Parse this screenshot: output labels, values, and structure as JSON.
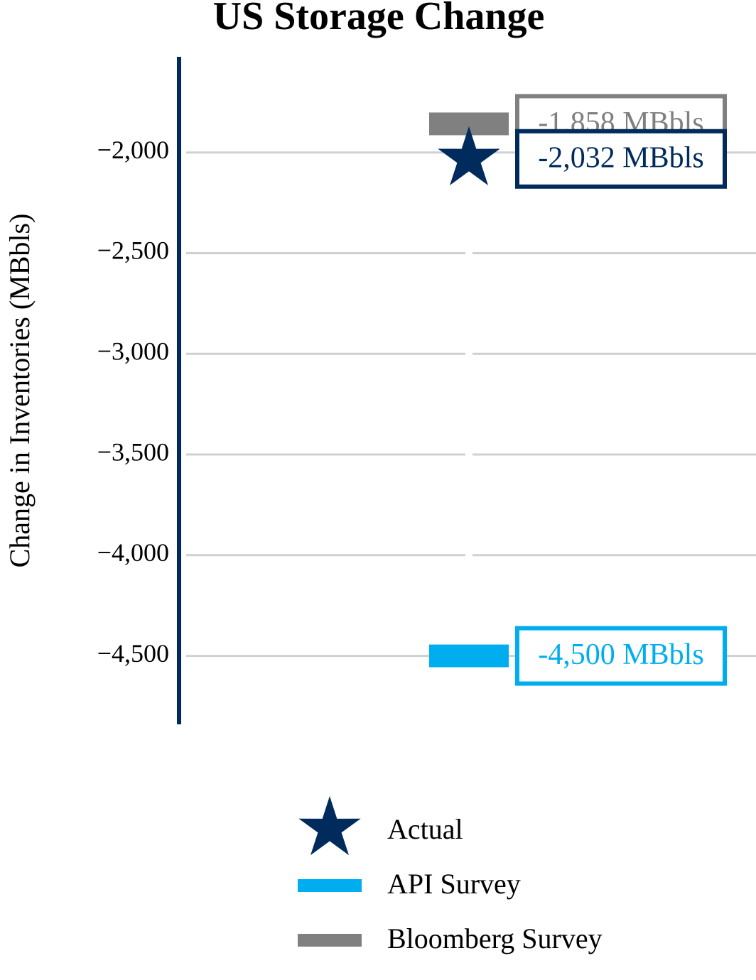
{
  "chart_data": {
    "type": "marker",
    "title": "US Storage Change",
    "y_label": "Change in Inventories (MBbls)",
    "categories": [
      null
    ],
    "series": [
      {
        "name": "Actual",
        "color": "#002b5c",
        "marker": "star",
        "values": [
          -2032
        ],
        "value_labels": [
          "-2,032 MBbls"
        ]
      },
      {
        "name": "API Survey",
        "color": "#00aeef",
        "marker": "dash",
        "values": [
          -4500
        ],
        "value_labels": [
          "-4,500 MBbls"
        ]
      },
      {
        "name": "Bloomberg Survey",
        "color": "#808080",
        "marker": "dash",
        "values": [
          -1858
        ],
        "value_labels": [
          "-1,858 MBbls"
        ]
      }
    ],
    "ylim": [
      -4840,
      -1525
    ],
    "yticks": [
      {
        "value": -2000,
        "label": "−2,000"
      },
      {
        "value": -2500,
        "label": "−2,500"
      },
      {
        "value": -3000,
        "label": "−3,000"
      },
      {
        "value": -3500,
        "label": "−3,500"
      },
      {
        "value": -4000,
        "label": "−4,000"
      },
      {
        "value": -4500,
        "label": "−4,500"
      }
    ],
    "grid": true,
    "legend": "bottom",
    "axis_color": "#002b5c"
  }
}
